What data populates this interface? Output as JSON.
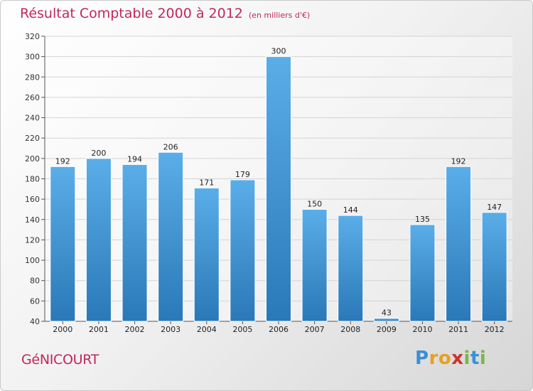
{
  "chart_data": {
    "type": "bar",
    "title": "Résultat Comptable 2000 à 2012",
    "subtitle": "(en milliers d'€)",
    "categories": [
      "2000",
      "2001",
      "2002",
      "2003",
      "2004",
      "2005",
      "2006",
      "2007",
      "2008",
      "2009",
      "2010",
      "2011",
      "2012"
    ],
    "values": [
      192,
      200,
      194,
      206,
      171,
      179,
      300,
      150,
      144,
      43,
      135,
      192,
      147
    ],
    "ylim": [
      40,
      320
    ],
    "yticks": [
      40,
      60,
      80,
      100,
      120,
      140,
      160,
      180,
      200,
      220,
      240,
      260,
      280,
      300,
      320
    ],
    "grid": true,
    "bar_color_top": "#5aaee8",
    "bar_color_bottom": "#2a78b8",
    "xlabel": "",
    "ylabel": ""
  },
  "place_name": "GéNICOURT",
  "logo": {
    "letters": [
      "P",
      "r",
      "o",
      "x",
      "i",
      "t",
      "i"
    ],
    "colors": [
      "#3a8fd6",
      "#e8a020",
      "#e8a020",
      "#d03030",
      "#7ab648",
      "#3a8fd6",
      "#7ab648"
    ]
  }
}
